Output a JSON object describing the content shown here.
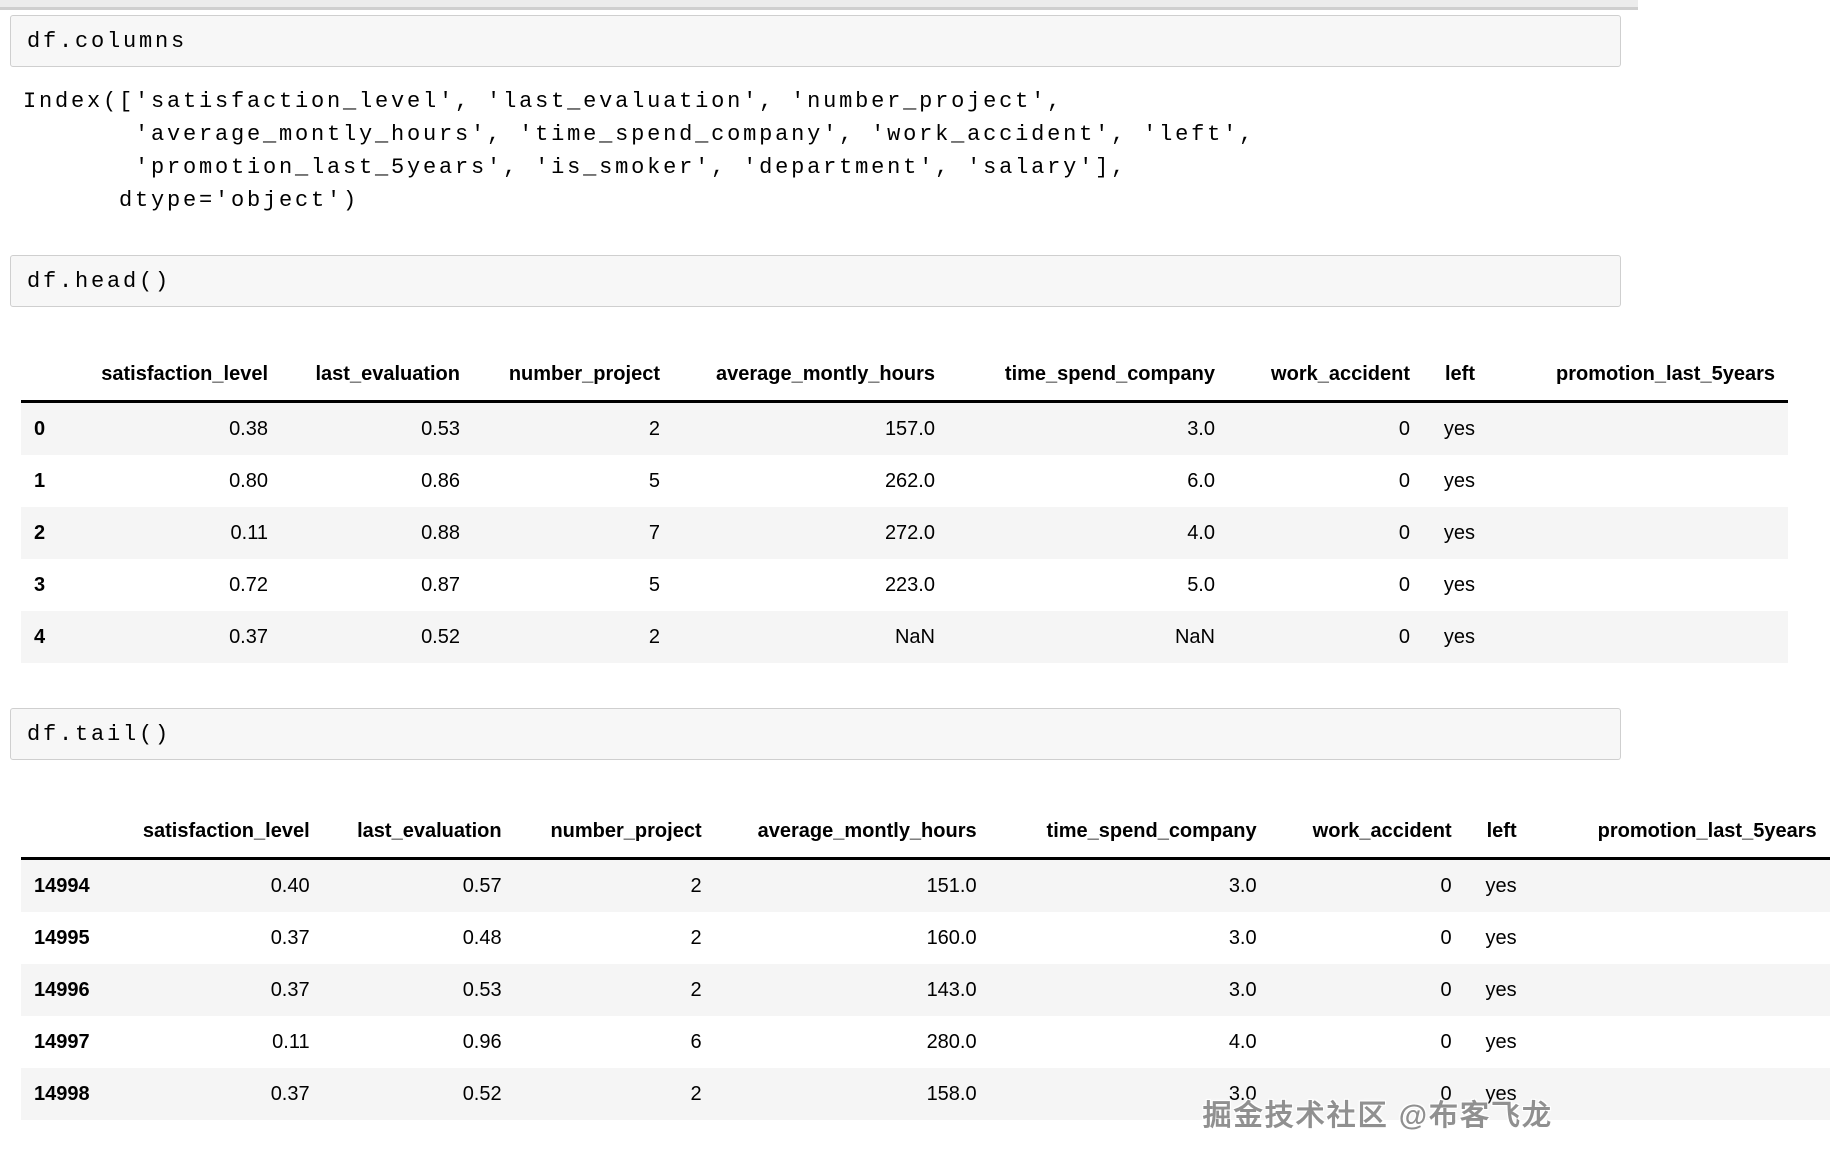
{
  "cells": {
    "columns_source": "df.columns",
    "columns_output": "Index(['satisfaction_level', 'last_evaluation', 'number_project',\n       'average_montly_hours', 'time_spend_company', 'work_accident', 'left',\n       'promotion_last_5years', 'is_smoker', 'department', 'salary'],\n      dtype='object')",
    "head_source": "df.head()",
    "tail_source": "df.tail()"
  },
  "head_table": {
    "columns": [
      "satisfaction_level",
      "last_evaluation",
      "number_project",
      "average_montly_hours",
      "time_spend_company",
      "work_accident",
      "left",
      "promotion_last_5years"
    ],
    "rows": [
      {
        "index": "0",
        "values": [
          "0.38",
          "0.53",
          "2",
          "157.0",
          "3.0",
          "0",
          "yes",
          ""
        ]
      },
      {
        "index": "1",
        "values": [
          "0.80",
          "0.86",
          "5",
          "262.0",
          "6.0",
          "0",
          "yes",
          ""
        ]
      },
      {
        "index": "2",
        "values": [
          "0.11",
          "0.88",
          "7",
          "272.0",
          "4.0",
          "0",
          "yes",
          ""
        ]
      },
      {
        "index": "3",
        "values": [
          "0.72",
          "0.87",
          "5",
          "223.0",
          "5.0",
          "0",
          "yes",
          ""
        ]
      },
      {
        "index": "4",
        "values": [
          "0.37",
          "0.52",
          "2",
          "NaN",
          "NaN",
          "0",
          "yes",
          ""
        ]
      }
    ]
  },
  "tail_table": {
    "columns": [
      "satisfaction_level",
      "last_evaluation",
      "number_project",
      "average_montly_hours",
      "time_spend_company",
      "work_accident",
      "left",
      "promotion_last_5years"
    ],
    "rows": [
      {
        "index": "14994",
        "values": [
          "0.40",
          "0.57",
          "2",
          "151.0",
          "3.0",
          "0",
          "yes",
          ""
        ]
      },
      {
        "index": "14995",
        "values": [
          "0.37",
          "0.48",
          "2",
          "160.0",
          "3.0",
          "0",
          "yes",
          ""
        ]
      },
      {
        "index": "14996",
        "values": [
          "0.37",
          "0.53",
          "2",
          "143.0",
          "3.0",
          "0",
          "yes",
          ""
        ]
      },
      {
        "index": "14997",
        "values": [
          "0.11",
          "0.96",
          "6",
          "280.0",
          "4.0",
          "0",
          "yes",
          ""
        ]
      },
      {
        "index": "14998",
        "values": [
          "0.37",
          "0.52",
          "2",
          "158.0",
          "3.0",
          "0",
          "yes",
          ""
        ]
      }
    ]
  },
  "watermark": {
    "text": "掘金技术社区 @布客飞龙"
  }
}
